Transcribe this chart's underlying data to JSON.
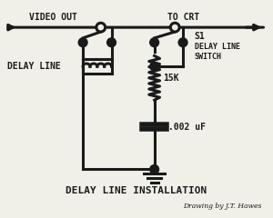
{
  "bg_color": "#f0f0e8",
  "line_color": "#1a1a1a",
  "title": "DELAY LINE INSTALLATION",
  "subtitle": "Drawing by J.T. Hawes",
  "label_video_out": "VIDEO OUT",
  "label_to_crt": "TO CRT",
  "label_delay_line": "DELAY LINE",
  "label_s1": "S1",
  "label_switch": "DELAY LINE\nSWITCH",
  "label_15k": "15K",
  "label_cap": "0.002 uF",
  "lw": 2.2
}
